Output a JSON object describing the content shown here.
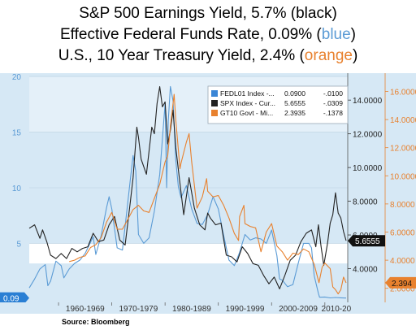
{
  "titles": {
    "line1": "S&P 500 Earnings Yield, 5.7% (black)",
    "line2_text": "Effective Federal Funds Rate, 0.09% (",
    "line2_colored": "blue",
    "line2_end": ")",
    "line3_text": "U.S., 10 Year Treasury Yield, 2.4% (",
    "line3_colored": "orange",
    "line3_end": ")"
  },
  "source": "Source:  Bloomberg",
  "chart_data": {
    "type": "line",
    "title": "",
    "colors": {
      "background": "#d6e8f5",
      "band": "#ffffff",
      "blue": "#5b9bd5",
      "black": "#222222",
      "orange": "#e8812e",
      "left_axis": "#5b9bd5",
      "mid_axis": "#222222",
      "right_axis": "#e8812e"
    },
    "x_decades": [
      "1960-1969",
      "1970-1979",
      "1980-1989",
      "1990-1999",
      "2000-2009",
      "2010-20"
    ],
    "xlim": [
      1954.5,
      2014.3
    ],
    "axes": {
      "left": {
        "series": "FEDL01 Index",
        "ylim": [
          -0.3,
          20.3
        ],
        "ticks": [
          "20",
          "15",
          "10",
          "5"
        ],
        "tick_values": [
          20,
          15,
          10,
          5
        ],
        "last_value_label": "0.09",
        "last_value": 0.09
      },
      "middle": {
        "series": "SPX Index",
        "ylim": [
          2.0,
          15.6
        ],
        "ticks": [
          "14.0000",
          "12.0000",
          "10.0000",
          "8.0000",
          "6.0000",
          "4.0000"
        ],
        "tick_values": [
          14,
          12,
          10,
          8,
          6,
          4
        ],
        "last_value_label": "5.6555",
        "last_value": 5.6555
      },
      "right": {
        "series": "GT10 Govt",
        "ylim": [
          1.0,
          17.3
        ],
        "ticks": [
          "16.0000",
          "14.0000",
          "12.0000",
          "10.0000",
          "8.0000",
          "6.0000",
          "4.0000",
          "2.0000"
        ],
        "tick_values": [
          16,
          14,
          12,
          10,
          8,
          6,
          4,
          2
        ],
        "last_value_label": "2.394",
        "last_value": 2.394
      }
    },
    "legend": {
      "position": "top-right",
      "rows": [
        {
          "color": "#3a86d6",
          "label": "FEDL01 Index -...",
          "value": "0.0900",
          "change": "-.0100"
        },
        {
          "color": "#222222",
          "label": "SPX Index - Cur...",
          "value": "5.6555",
          "change": "-.0309"
        },
        {
          "color": "#e8812e",
          "label": "GT10 Govt - Mi...",
          "value": "2.3935",
          "change": "-.1378"
        }
      ]
    },
    "series": [
      {
        "name": "FEDL01 Index",
        "axis": "left",
        "color": "#5b9bd5",
        "x": [
          1954.5,
          1955.5,
          1956.5,
          1957.5,
          1958.0,
          1958.5,
          1959.5,
          1960.5,
          1961.0,
          1962.0,
          1963.0,
          1964.0,
          1965.0,
          1966.0,
          1966.5,
          1967.0,
          1968.0,
          1969.0,
          1969.5,
          1970.0,
          1971.0,
          1972.0,
          1973.0,
          1973.5,
          1974.0,
          1974.5,
          1975.0,
          1976.0,
          1977.0,
          1978.0,
          1979.0,
          1980.0,
          1980.3,
          1980.6,
          1981.0,
          1981.5,
          1982.0,
          1982.5,
          1983.0,
          1984.0,
          1985.0,
          1986.0,
          1987.0,
          1988.0,
          1989.0,
          1990.0,
          1991.0,
          1992.0,
          1993.0,
          1994.0,
          1995.0,
          1996.0,
          1997.0,
          1998.0,
          1999.0,
          2000.0,
          2001.0,
          2001.5,
          2002.0,
          2003.0,
          2004.0,
          2005.0,
          2006.0,
          2007.0,
          2007.5,
          2008.0,
          2008.8,
          2009.0,
          2010.0,
          2011.0,
          2012.0,
          2013.0,
          2014.0
        ],
        "values": [
          1.0,
          1.8,
          2.7,
          3.1,
          1.2,
          1.6,
          3.4,
          3.0,
          1.9,
          2.7,
          3.2,
          3.5,
          4.1,
          5.1,
          5.6,
          4.0,
          5.7,
          8.2,
          9.2,
          8.1,
          4.6,
          4.4,
          8.7,
          10.8,
          12.9,
          11.5,
          5.8,
          5.0,
          5.5,
          7.9,
          11.2,
          17.6,
          10.0,
          16.0,
          19.1,
          17.8,
          12.5,
          10.1,
          9.1,
          10.2,
          8.1,
          6.8,
          6.7,
          7.6,
          9.2,
          8.1,
          5.7,
          3.5,
          3.0,
          4.2,
          5.8,
          5.3,
          5.5,
          5.4,
          5.0,
          6.2,
          3.9,
          1.8,
          1.7,
          1.1,
          1.3,
          3.2,
          5.0,
          5.0,
          4.6,
          2.1,
          0.5,
          0.16,
          0.18,
          0.1,
          0.14,
          0.11,
          0.09
        ]
      },
      {
        "name": "SPX Index",
        "axis": "middle",
        "color": "#222222",
        "x": [
          1954.5,
          1955.5,
          1956.5,
          1957.0,
          1957.8,
          1958.5,
          1959.5,
          1960.5,
          1961.5,
          1962.5,
          1963.5,
          1964.5,
          1965.5,
          1966.5,
          1967.5,
          1968.5,
          1969.5,
          1970.5,
          1971.5,
          1972.5,
          1973.5,
          1974.0,
          1974.7,
          1975.0,
          1975.5,
          1976.5,
          1977.0,
          1977.5,
          1978.0,
          1978.5,
          1979.0,
          1979.5,
          1980.0,
          1980.5,
          1981.0,
          1981.5,
          1982.0,
          1982.7,
          1983.5,
          1984.5,
          1985.5,
          1986.5,
          1987.5,
          1988.0,
          1988.5,
          1989.5,
          1990.5,
          1991.5,
          1992.5,
          1993.5,
          1994.5,
          1995.5,
          1996.5,
          1997.5,
          1998.5,
          1999.5,
          2000.5,
          2001.5,
          2002.5,
          2003.5,
          2004.5,
          2005.5,
          2006.5,
          2007.5,
          2008.3,
          2008.8,
          2009.3,
          2009.8,
          2010.5,
          2011.0,
          2011.5,
          2012.0,
          2012.5,
          2013.0,
          2013.5,
          2014.0
        ],
        "values": [
          6.4,
          6.6,
          5.8,
          6.3,
          5.6,
          4.8,
          4.6,
          4.9,
          4.6,
          5.2,
          5.0,
          5.2,
          5.3,
          6.1,
          5.6,
          5.7,
          6.6,
          7.1,
          5.7,
          5.4,
          8.0,
          9.4,
          12.4,
          11.8,
          10.5,
          9.6,
          11.0,
          12.4,
          12.0,
          13.8,
          14.8,
          13.6,
          13.9,
          11.4,
          12.2,
          13.4,
          11.2,
          9.3,
          7.2,
          9.4,
          7.6,
          6.6,
          6.3,
          7.3,
          7.0,
          6.6,
          6.7,
          4.8,
          4.7,
          4.4,
          5.3,
          4.9,
          4.3,
          4.2,
          3.6,
          3.1,
          3.5,
          2.8,
          3.6,
          4.5,
          4.8,
          5.6,
          6.1,
          6.3,
          5.3,
          6.6,
          5.3,
          4.2,
          5.5,
          6.7,
          7.2,
          8.5,
          7.3,
          7.0,
          6.2,
          5.66
        ]
      },
      {
        "name": "GT10 Govt",
        "axis": "right",
        "color": "#e8812e",
        "x": [
          1962.0,
          1963.0,
          1964.0,
          1965.0,
          1966.0,
          1967.0,
          1968.0,
          1969.0,
          1970.0,
          1971.0,
          1972.0,
          1973.0,
          1974.0,
          1975.0,
          1976.0,
          1977.0,
          1978.0,
          1979.0,
          1980.0,
          1980.5,
          1981.0,
          1981.7,
          1982.0,
          1982.8,
          1983.0,
          1984.0,
          1984.5,
          1985.0,
          1986.0,
          1987.0,
          1987.8,
          1988.0,
          1989.0,
          1990.0,
          1991.0,
          1992.0,
          1993.0,
          1993.8,
          1994.0,
          1994.8,
          1995.0,
          1996.0,
          1997.0,
          1998.0,
          1999.0,
          2000.0,
          2001.0,
          2002.0,
          2003.0,
          2004.0,
          2005.0,
          2006.0,
          2007.0,
          2008.0,
          2008.9,
          2009.5,
          2010.0,
          2011.0,
          2011.5,
          2012.0,
          2012.5,
          2013.0,
          2013.5,
          2014.0
        ],
        "values": [
          3.9,
          4.0,
          4.2,
          4.3,
          4.9,
          5.1,
          5.6,
          6.7,
          7.4,
          6.2,
          6.2,
          6.9,
          7.6,
          7.9,
          7.5,
          7.4,
          8.4,
          9.4,
          11.0,
          11.4,
          13.5,
          15.8,
          14.0,
          10.5,
          10.9,
          12.4,
          13.0,
          11.0,
          7.7,
          8.5,
          9.8,
          8.9,
          8.5,
          8.6,
          7.9,
          7.0,
          5.9,
          5.4,
          7.1,
          7.9,
          6.6,
          6.4,
          6.3,
          4.6,
          6.0,
          6.6,
          5.0,
          4.6,
          4.0,
          4.5,
          4.4,
          4.8,
          4.6,
          3.7,
          2.4,
          3.5,
          3.8,
          3.4,
          2.1,
          1.9,
          1.6,
          1.9,
          2.8,
          2.39
        ]
      }
    ]
  }
}
